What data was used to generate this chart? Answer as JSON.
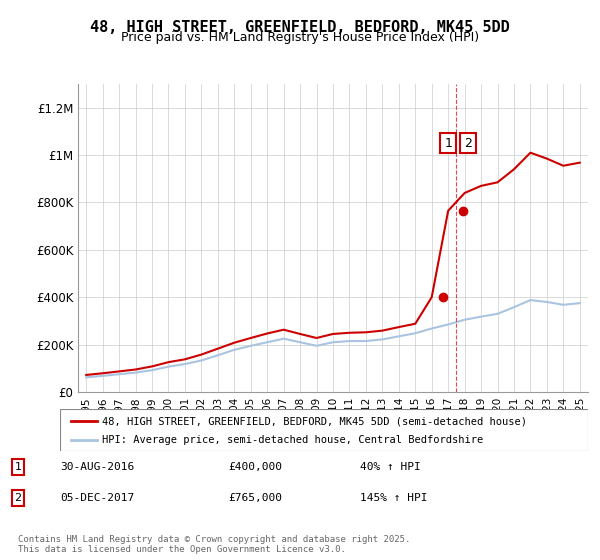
{
  "title_line1": "48, HIGH STREET, GREENFIELD, BEDFORD, MK45 5DD",
  "title_line2": "Price paid vs. HM Land Registry's House Price Index (HPI)",
  "legend_label1": "48, HIGH STREET, GREENFIELD, BEDFORD, MK45 5DD (semi-detached house)",
  "legend_label2": "HPI: Average price, semi-detached house, Central Bedfordshire",
  "footnote": "Contains HM Land Registry data © Crown copyright and database right 2025.\nThis data is licensed under the Open Government Licence v3.0.",
  "transaction1_label": "1",
  "transaction1_date": "30-AUG-2016",
  "transaction1_price": "£400,000",
  "transaction1_hpi": "40% ↑ HPI",
  "transaction2_label": "2",
  "transaction2_date": "05-DEC-2017",
  "transaction2_price": "£765,000",
  "transaction2_hpi": "145% ↑ HPI",
  "hpi_color": "#aac4e0",
  "price_color": "#cc0000",
  "marker_color": "#cc0000",
  "ylim_max": 1300000,
  "ylim_min": 0,
  "yticks": [
    0,
    200000,
    400000,
    600000,
    800000,
    1000000,
    1200000
  ],
  "ytick_labels": [
    "£0",
    "£200K",
    "£400K",
    "£600K",
    "£800K",
    "£1M",
    "£1.2M"
  ],
  "transaction1_year": 2016.66,
  "transaction1_value": 400000,
  "transaction2_year": 2017.92,
  "transaction2_value": 765000,
  "hpi_years": [
    1995,
    1996,
    1997,
    1998,
    1999,
    2000,
    2001,
    2002,
    2003,
    2004,
    2005,
    2006,
    2007,
    2008,
    2009,
    2010,
    2011,
    2012,
    2013,
    2014,
    2015,
    2016,
    2017,
    2018,
    2019,
    2020,
    2021,
    2022,
    2023,
    2024,
    2025
  ],
  "hpi_values": [
    62000,
    68000,
    75000,
    82000,
    92000,
    107000,
    118000,
    133000,
    155000,
    178000,
    195000,
    210000,
    225000,
    210000,
    195000,
    210000,
    215000,
    215000,
    222000,
    235000,
    248000,
    268000,
    285000,
    305000,
    318000,
    330000,
    358000,
    388000,
    380000,
    368000,
    375000
  ],
  "price_years": [
    1995,
    1996,
    1997,
    1998,
    1999,
    2000,
    2001,
    2002,
    2003,
    2004,
    2005,
    2006,
    2007,
    2008,
    2009,
    2010,
    2011,
    2012,
    2013,
    2014,
    2015,
    2016,
    2017,
    2018,
    2019,
    2020,
    2021,
    2022,
    2023,
    2024,
    2025
  ],
  "price_values": [
    72000,
    79000,
    87000,
    95000,
    108000,
    126000,
    138000,
    158000,
    183000,
    208000,
    228000,
    247000,
    263000,
    245000,
    228000,
    245000,
    250000,
    252000,
    259000,
    274000,
    288000,
    400000,
    765000,
    840000,
    870000,
    885000,
    940000,
    1010000,
    985000,
    955000,
    968000
  ],
  "background_color": "#ffffff",
  "grid_color": "#cccccc"
}
